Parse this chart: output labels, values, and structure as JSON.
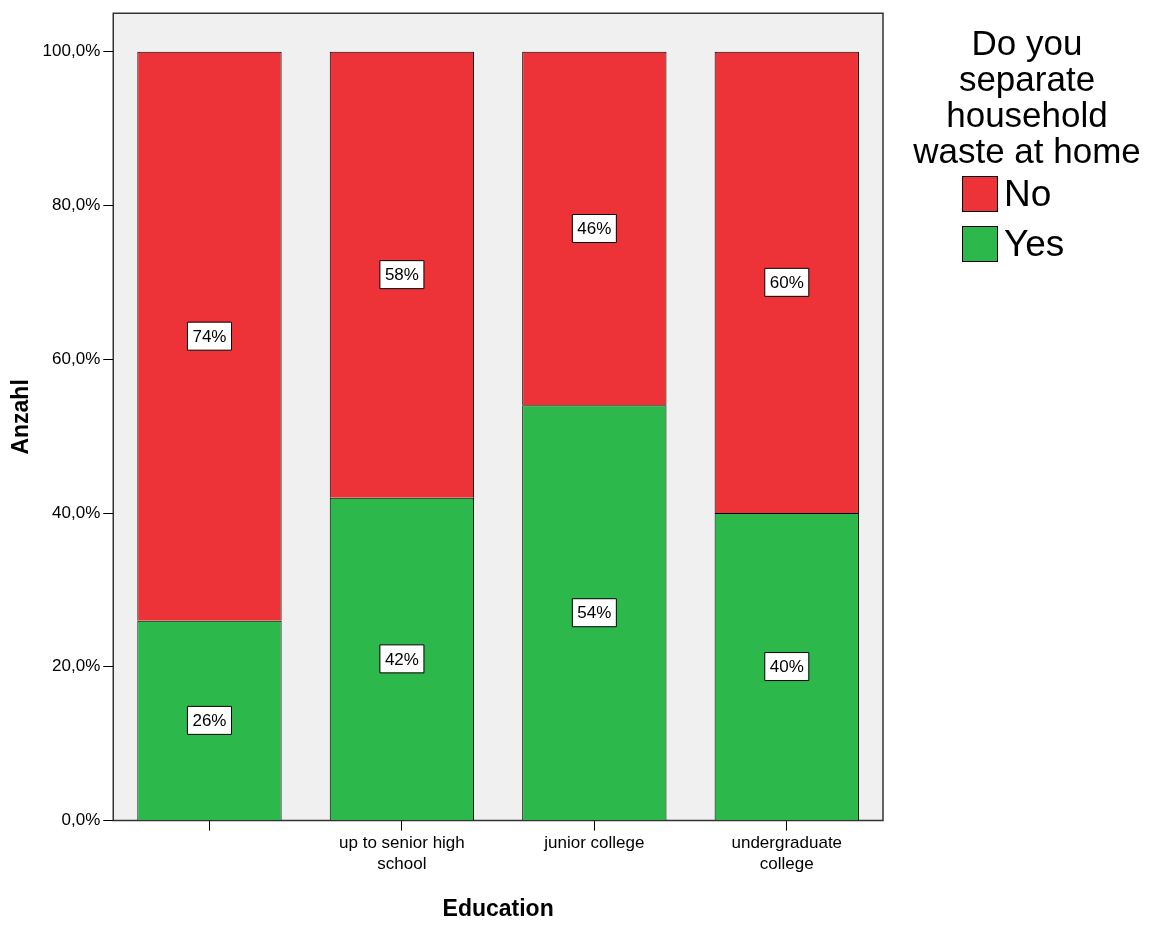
{
  "chart_data": {
    "type": "bar",
    "stacked": true,
    "xlabel": "Education",
    "ylabel": "Anzahl",
    "legend_title": "Do you separate household waste at home",
    "legend": "top right",
    "categories": [
      null,
      "up to senior high school",
      "junior college",
      "undergraduate college"
    ],
    "ylim": [
      0,
      105
    ],
    "yticks": [
      {
        "value": 0,
        "label": "0,0%"
      },
      {
        "value": 20,
        "label": "20,0%"
      },
      {
        "value": 40,
        "label": "40,0%"
      },
      {
        "value": 60,
        "label": "60,0%"
      },
      {
        "value": 80,
        "label": "80,0%"
      },
      {
        "value": 100,
        "label": "100,0%"
      }
    ],
    "series": [
      {
        "name": "Yes",
        "color": "#2db84b",
        "values": [
          26,
          42,
          54,
          40
        ],
        "value_labels": [
          "26%",
          "42%",
          "54%",
          "40%"
        ]
      },
      {
        "name": "No",
        "color": "#ee3338",
        "values": [
          74,
          58,
          46,
          60
        ],
        "value_labels": [
          "74%",
          "58%",
          "46%",
          "60%"
        ]
      }
    ]
  }
}
